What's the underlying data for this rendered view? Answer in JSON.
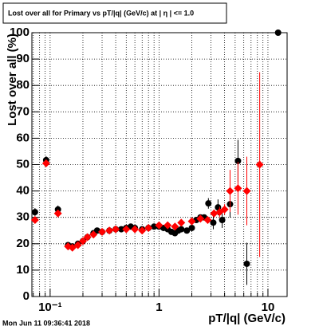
{
  "chart_data": {
    "type": "scatter",
    "title": "Lost over all for Primary vs pT/|q| (GeV/c) at | η | <= 1.0",
    "x_label": "pT/|q| (GeV/c)",
    "y_label": "Lost over all (%)",
    "date_stamp": "Mon Jun 11 09:36:41 2018",
    "log_x": true,
    "grid": true,
    "xlim": [
      0.068,
      15
    ],
    "ylim": [
      0,
      100
    ],
    "xticks": [
      {
        "value": 0.1,
        "label": "10⁻¹"
      },
      1,
      10
    ],
    "yticks": [
      0,
      10,
      20,
      30,
      40,
      50,
      60,
      70,
      80,
      90,
      100
    ],
    "series": [
      {
        "color": "#000000",
        "marker": "circle",
        "x": [
          0.0726,
          0.0919,
          0.118,
          0.146,
          0.16,
          0.18,
          0.2,
          0.22,
          0.25,
          0.27,
          0.3,
          0.35,
          0.4,
          0.45,
          0.5,
          0.55,
          0.6,
          0.7,
          0.8,
          0.9,
          1.0,
          1.1,
          1.2,
          1.3,
          1.4,
          1.5,
          1.6,
          1.8,
          2.0,
          2.2,
          2.4,
          2.6,
          2.84,
          3.15,
          3.48,
          3.8,
          4.49,
          5.31,
          6.4,
          12.4
        ],
        "values": [
          32,
          51.7,
          33,
          19.5,
          19,
          20,
          21,
          22.5,
          24,
          25,
          24.5,
          25,
          25.5,
          25.5,
          26,
          26.5,
          26,
          25.5,
          26,
          26.5,
          26.5,
          26,
          25.5,
          24.5,
          24,
          25,
          25.5,
          25,
          26,
          29,
          30,
          30,
          35.3,
          28,
          33.8,
          29,
          35,
          51.4,
          12.4,
          100
        ],
        "errors": [
          1.5,
          1.5,
          1.5,
          1,
          1,
          1,
          1,
          1,
          1,
          1,
          1,
          1,
          1,
          1,
          1,
          1,
          1,
          1,
          1,
          1,
          1,
          1,
          1,
          1,
          1,
          1,
          1,
          1,
          1,
          1,
          1,
          1,
          2,
          2.5,
          3,
          3,
          5,
          8,
          8,
          0
        ]
      },
      {
        "color": "#ff0000",
        "marker": "diamond",
        "x": [
          0.0726,
          0.0919,
          0.118,
          0.146,
          0.16,
          0.18,
          0.2,
          0.22,
          0.25,
          0.3,
          0.35,
          0.4,
          0.5,
          0.6,
          0.7,
          0.8,
          1.0,
          1.2,
          1.4,
          1.6,
          2.0,
          2.4,
          2.8,
          3.2,
          3.6,
          4.0,
          4.49,
          5.31,
          6.4,
          8.4
        ],
        "values": [
          29,
          50.5,
          31.5,
          19,
          18.5,
          19.5,
          21,
          22.5,
          23.5,
          24.5,
          25,
          25.5,
          25.5,
          25.5,
          25,
          26,
          27,
          27,
          26.5,
          28,
          28.5,
          29.5,
          29,
          31.5,
          32,
          33,
          40,
          41,
          40,
          50
        ],
        "errors": [
          1,
          1,
          1,
          1,
          1,
          1,
          1,
          1,
          1,
          1,
          1,
          1,
          1,
          1,
          1,
          1,
          1,
          1,
          1,
          1,
          1,
          1,
          1,
          1.5,
          2,
          2,
          8,
          10,
          13,
          35
        ]
      }
    ]
  }
}
